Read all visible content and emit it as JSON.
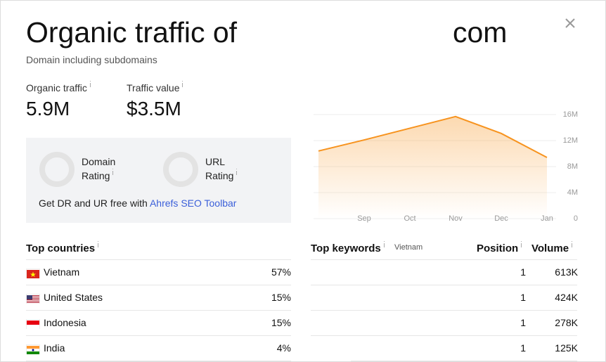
{
  "header": {
    "title": "Organic traffic of",
    "title_suffix": "com",
    "subtitle": "Domain including subdomains"
  },
  "metrics": [
    {
      "label": "Organic traffic",
      "value": "5.9M"
    },
    {
      "label": "Traffic value",
      "value": "$3.5M"
    }
  ],
  "ratings": [
    "Domain Rating",
    "URL Rating"
  ],
  "promo": {
    "text": "Get DR and UR free with",
    "link": "Ahrefs SEO Toolbar"
  },
  "chart_data": {
    "type": "area",
    "categories": [
      null,
      "Sep",
      "Oct",
      "Nov",
      "Dec",
      "Jan"
    ],
    "values": [
      10400000,
      12100000,
      13900000,
      15700000,
      13100000,
      9400000
    ],
    "color": "#f7931e",
    "ylim": [
      0,
      16000000
    ],
    "yticks": [
      0,
      {
        "value": 4000000,
        "label": "4M"
      },
      {
        "value": 8000000,
        "label": "8M"
      },
      {
        "value": 12000000,
        "label": "12M"
      },
      {
        "value": 16000000,
        "label": "16M"
      }
    ],
    "grid": true
  },
  "top_countries": {
    "title": "Top countries",
    "rows": [
      {
        "name": "Vietnam",
        "share": "57%"
      },
      {
        "name": "United States",
        "share": "15%"
      },
      {
        "name": "Indonesia",
        "share": "15%"
      },
      {
        "name": "India",
        "share": "4%"
      }
    ]
  },
  "top_keywords": {
    "title": "Top keywords",
    "filter": "Vietnam",
    "columns": [
      "Position",
      "Volume"
    ],
    "rows": [
      [
        "1",
        "613K"
      ],
      [
        "1",
        "424K"
      ],
      [
        "1",
        "278K"
      ],
      [
        "1",
        "125K"
      ]
    ]
  }
}
